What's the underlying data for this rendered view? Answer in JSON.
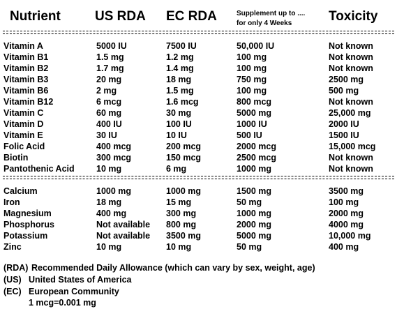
{
  "header": {
    "nutrient": "Nutrient",
    "us_rda": "US RDA",
    "ec_rda": "EC RDA",
    "supplement_line1": "Supplement up to ....",
    "supplement_line2": "for only 4 Weeks",
    "toxicity": "Toxicity"
  },
  "vitamins": [
    {
      "name": "Vitamin A",
      "us": "5000 IU",
      "ec": "7500 IU",
      "supp": "50,000 IU",
      "tox": "Not known"
    },
    {
      "name": "Vitamin B1",
      "us": "1.5 mg",
      "ec": "1.2 mg",
      "supp": "100 mg",
      "tox": "Not known"
    },
    {
      "name": "Vitamin B2",
      "us": "1.7 mg",
      "ec": "1.4 mg",
      "supp": "100 mg",
      "tox": "Not known"
    },
    {
      "name": "Vitamin B3",
      "us": "20 mg",
      "ec": "18 mg",
      "supp": "750 mg",
      "tox": "2500 mg"
    },
    {
      "name": "Vitamin B6",
      "us": "2 mg",
      "ec": "1.5 mg",
      "supp": "100 mg",
      "tox": "500 mg"
    },
    {
      "name": "Vitamin B12",
      "us": "6 mcg",
      "ec": "1.6 mcg",
      "supp": "800 mcg",
      "tox": "Not known"
    },
    {
      "name": "Vitamin C",
      "us": "60 mg",
      "ec": "30 mg",
      "supp": "5000 mg",
      "tox": "25,000 mg"
    },
    {
      "name": "Vitamin D",
      "us": "400 IU",
      "ec": "100 IU",
      "supp": "1000 IU",
      "tox": "2000 IU"
    },
    {
      "name": "Vitamin E",
      "us": "30 IU",
      "ec": "10 IU",
      "supp": "500 IU",
      "tox": "1500 IU"
    },
    {
      "name": "Folic Acid",
      "us": "400 mcg",
      "ec": "200 mcg",
      "supp": "2000 mcg",
      "tox": "15,000 mcg"
    },
    {
      "name": "Biotin",
      "us": "300 mcg",
      "ec": "150 mcg",
      "supp": "2500 mcg",
      "tox": "Not known"
    },
    {
      "name": "Pantothenic Acid",
      "us": "10 mg",
      "ec": "6 mg",
      "supp": "1000 mg",
      "tox": "Not known"
    }
  ],
  "minerals": [
    {
      "name": "Calcium",
      "us": "1000 mg",
      "ec": "1000 mg",
      "supp": "1500 mg",
      "tox": "3500 mg"
    },
    {
      "name": "Iron",
      "us": "18 mg",
      "ec": "15 mg",
      "supp": "50 mg",
      "tox": "100 mg"
    },
    {
      "name": "Magnesium",
      "us": "400 mg",
      "ec": "300 mg",
      "supp": "1000 mg",
      "tox": "2000 mg"
    },
    {
      "name": "Phosphorus",
      "us": "Not available",
      "ec": "800 mg",
      "supp": "2000 mg",
      "tox": "4000 mg"
    },
    {
      "name": "Potassium",
      "us": "Not available",
      "ec": "3500 mg",
      "supp": "5000 mg",
      "tox": "10,000 mg"
    },
    {
      "name": "Zinc",
      "us": "10 mg",
      "ec": "10 mg",
      "supp": "50 mg",
      "tox": "400 mg"
    }
  ],
  "footnotes": [
    {
      "abbr": "(RDA)",
      "text": "Recommended Daily Allowance (which can vary by sex, weight, age)"
    },
    {
      "abbr": "(US)",
      "text": "United States of America"
    },
    {
      "abbr": "(EC)",
      "text": "European Community"
    }
  ],
  "unit_note": "1 mcg=0.001 mg"
}
